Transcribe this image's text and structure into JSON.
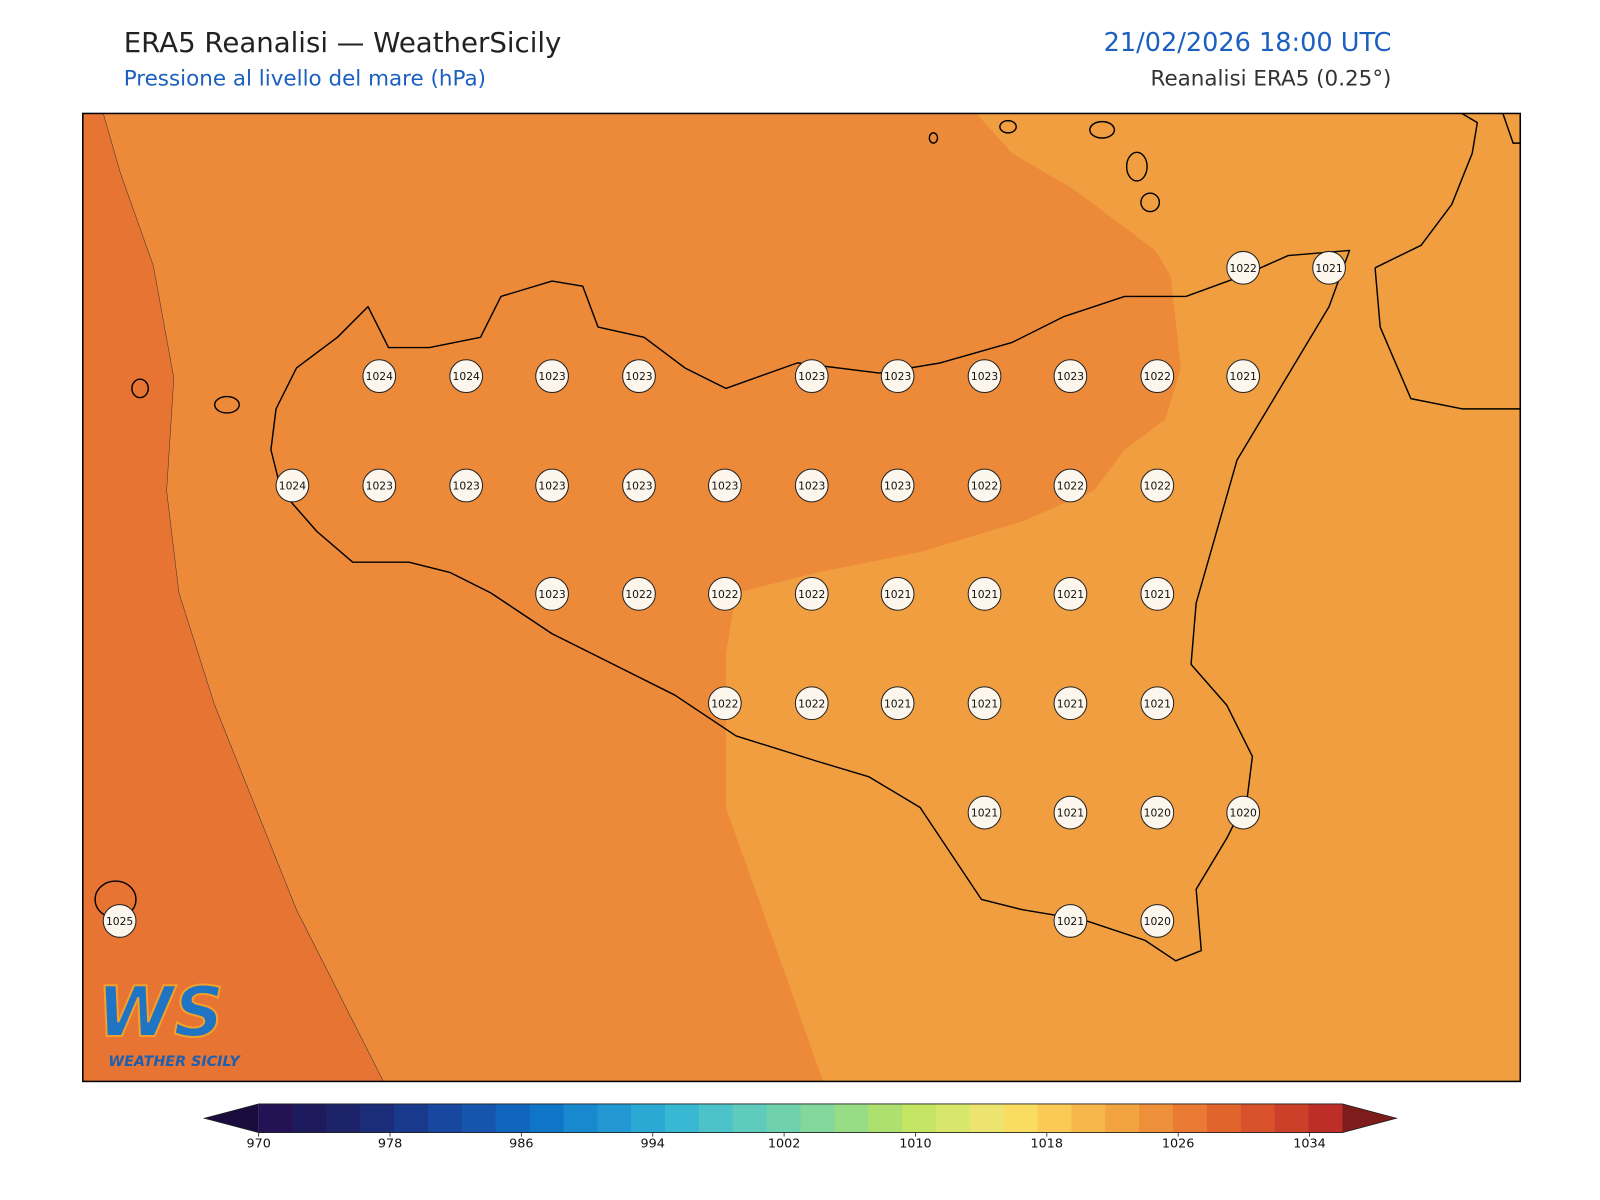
{
  "header": {
    "title": "ERA5 Reanalisi — WeatherSicily",
    "subtitle": "Pressione al livello del mare (hPa)",
    "datetime": "21/02/2026 18:00 UTC",
    "source": "Reanalisi ERA5 (0.25°)"
  },
  "map": {
    "stations": [
      1022,
      1021,
      1024,
      1024,
      1023,
      1023,
      1023,
      1023,
      1023,
      1023,
      1022,
      1021,
      1024,
      1023,
      1023,
      1023,
      1023,
      1023,
      1023,
      1023,
      1022,
      1022,
      1022,
      1023,
      1022,
      1022,
      1022,
      1021,
      1021,
      1021,
      1021,
      1022,
      1022,
      1021,
      1021,
      1021,
      1021,
      1021,
      1021,
      1020,
      1020,
      1025,
      1021,
      1020
    ]
  },
  "colorbar": {
    "lim": [
      970,
      1036
    ],
    "ticks": [
      970,
      978,
      986,
      994,
      1002,
      1010,
      1018,
      1026,
      1034
    ],
    "colors": [
      "#241254",
      "#1d1b5e",
      "#1c2368",
      "#1b2d78",
      "#193a8c",
      "#17479e",
      "#1555ad",
      "#1265bd",
      "#0f76c7",
      "#1888cf",
      "#2298d3",
      "#2aa9d5",
      "#38b8d2",
      "#4bc3c9",
      "#5ecbbd",
      "#70d1ae",
      "#83d79c",
      "#98dc86",
      "#aee06f",
      "#c4e463",
      "#d8e66b",
      "#ece46e",
      "#fbdc62",
      "#fbca56",
      "#f6b74a",
      "#f2a440",
      "#ee8f3a",
      "#e97a33",
      "#e2642d",
      "#d8522b",
      "#cc402a",
      "#be2e28"
    ],
    "under_color": "#1a0c3c",
    "over_color": "#7e1b1b"
  },
  "logo": {
    "mark": "WS",
    "name": "WEATHER SICILY"
  }
}
